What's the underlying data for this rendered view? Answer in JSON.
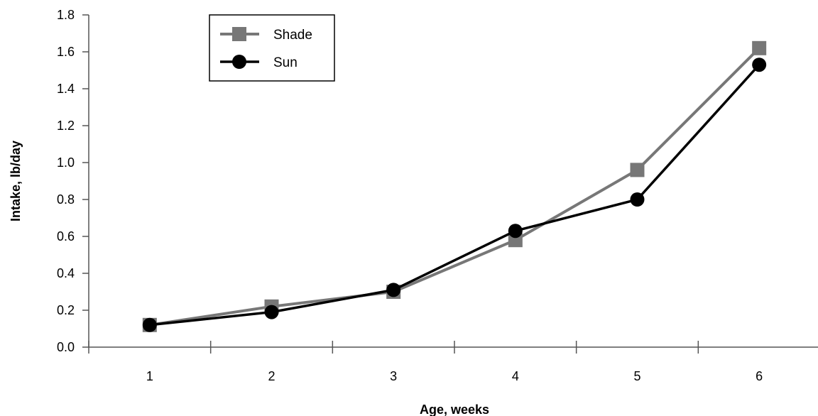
{
  "chart_data": {
    "type": "line",
    "xlabel": "Age, weeks",
    "ylabel": "Intake, lb/day",
    "categories": [
      "1",
      "2",
      "3",
      "4",
      "5",
      "6"
    ],
    "ylim": [
      0,
      1.8
    ],
    "ytick_step": 0.2,
    "yticks": [
      "0.0",
      "0.2",
      "0.4",
      "0.6",
      "0.8",
      "1.0",
      "1.2",
      "1.4",
      "1.6",
      "1.8"
    ],
    "grid": false,
    "legend_position": "top-left",
    "series": [
      {
        "name": "Shade",
        "marker": "square",
        "color": "#777777",
        "values": [
          0.12,
          0.22,
          0.3,
          0.58,
          0.96,
          1.62
        ]
      },
      {
        "name": "Sun",
        "marker": "circle",
        "color": "#000000",
        "values": [
          0.12,
          0.19,
          0.31,
          0.63,
          0.8,
          1.53
        ]
      }
    ]
  }
}
